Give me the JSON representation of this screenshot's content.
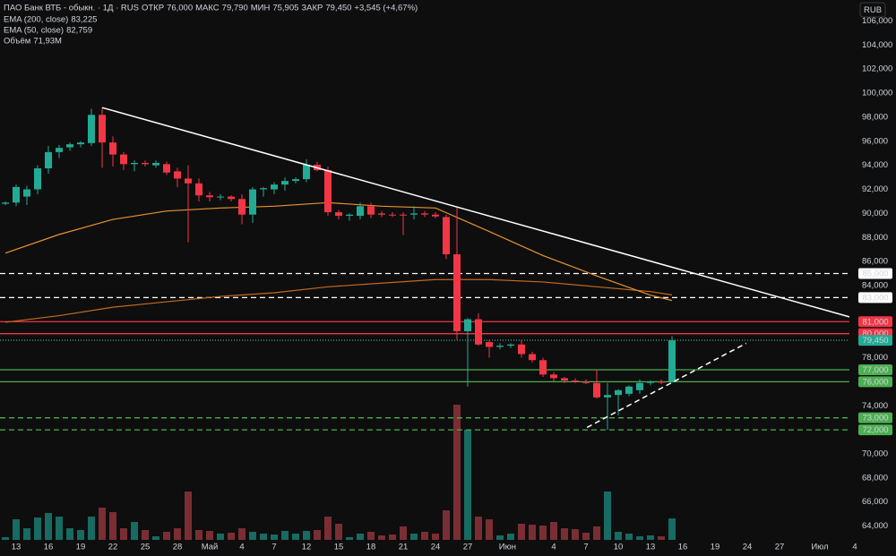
{
  "chart_data": {
    "type": "candlestick",
    "title": "ПАО Банк ВТБ - обыкн. · 1Д · RUS",
    "header": [
      [
        "ОТКР",
        "76,000"
      ],
      [
        "МАКС",
        "79,790"
      ],
      [
        "МИН",
        "75,905"
      ],
      [
        "ЗАКР",
        "79,450"
      ]
    ],
    "change": "+3,545 (+4,67%)",
    "currency": "RUB",
    "up_color": "#22ab94",
    "down_color": "#f23645",
    "candles": {
      "open": [
        90.8,
        90.9,
        91.4,
        92.0,
        93.75,
        95.1,
        95.5,
        95.75,
        95.85,
        98.2,
        95.9,
        94.9,
        94.1,
        94.2,
        94.0,
        94.1,
        93.5,
        92.9,
        92.5,
        91.5,
        91.4,
        91.4,
        91.2,
        89.9,
        92.0,
        92.0,
        92.4,
        92.7,
        92.85,
        94.05,
        93.6,
        90.1,
        89.8,
        89.8,
        90.6,
        90.0,
        89.9,
        89.9,
        89.9,
        90.0,
        89.9,
        89.7,
        86.6,
        80.2,
        81.2,
        79.3,
        78.9,
        79.0,
        79.1,
        78.3,
        77.8,
        76.6,
        76.3,
        76.1,
        76.0,
        75.9,
        74.7,
        74.9,
        75.0,
        75.3,
        75.9,
        76.0,
        76.0
      ],
      "high": [
        91.0,
        92.4,
        92.3,
        94.0,
        95.6,
        95.7,
        95.9,
        96.0,
        98.7,
        98.8,
        96.4,
        95.1,
        94.4,
        94.4,
        94.4,
        94.3,
        93.8,
        94.0,
        92.9,
        91.8,
        91.6,
        91.5,
        91.6,
        92.2,
        92.2,
        92.6,
        93.0,
        93.0,
        94.5,
        94.3,
        93.9,
        90.3,
        90.0,
        90.9,
        90.9,
        90.2,
        90.1,
        90.1,
        90.6,
        90.2,
        90.1,
        89.9,
        90.6,
        81.3,
        81.7,
        79.5,
        79.2,
        79.2,
        79.5,
        78.5,
        78.0,
        76.8,
        76.4,
        76.3,
        76.2,
        77.0,
        75.9,
        75.4,
        75.7,
        76.2,
        76.1,
        76.2,
        79.79
      ],
      "low": [
        90.7,
        90.6,
        90.7,
        91.6,
        93.3,
        94.6,
        95.2,
        95.5,
        95.6,
        93.8,
        93.9,
        93.6,
        93.5,
        93.9,
        93.8,
        93.2,
        92.2,
        87.6,
        91.0,
        91.0,
        91.1,
        91.0,
        89.1,
        89.2,
        91.4,
        91.6,
        91.9,
        92.5,
        92.6,
        93.5,
        89.8,
        89.5,
        89.4,
        89.5,
        89.6,
        89.7,
        89.7,
        88.2,
        89.5,
        89.7,
        89.6,
        86.2,
        79.5,
        75.6,
        79.0,
        78.0,
        78.7,
        78.8,
        78.0,
        77.6,
        76.4,
        76.0,
        75.9,
        75.9,
        75.8,
        74.6,
        72.0,
        73.2,
        74.8,
        75.0,
        75.7,
        75.8,
        75.905
      ],
      "close": [
        90.9,
        92.2,
        92.0,
        93.75,
        95.1,
        95.45,
        95.75,
        95.9,
        98.2,
        95.9,
        94.9,
        94.1,
        94.2,
        94.1,
        94.2,
        93.4,
        92.9,
        92.5,
        91.5,
        91.35,
        91.4,
        91.2,
        89.9,
        92.0,
        92.1,
        92.4,
        92.7,
        92.85,
        94.05,
        93.6,
        90.1,
        89.8,
        89.9,
        90.6,
        89.9,
        89.9,
        89.85,
        89.85,
        90.0,
        89.9,
        89.75,
        86.6,
        80.2,
        81.2,
        79.1,
        78.9,
        79.0,
        79.1,
        78.3,
        77.8,
        76.6,
        76.3,
        76.1,
        76.0,
        75.9,
        74.7,
        74.9,
        75.3,
        75.6,
        75.9,
        76.0,
        75.95,
        79.45
      ]
    },
    "volume": {
      "name": "Объём",
      "last_label": "71,93M",
      "vlim": [
        0,
        600
      ],
      "up_color": "#176b62",
      "down_color": "#7a2e33",
      "values": [
        9,
        69,
        39,
        75,
        90,
        78,
        39,
        33,
        78,
        108,
        93,
        39,
        60,
        33,
        12,
        27,
        39,
        162,
        33,
        30,
        21,
        24,
        39,
        27,
        21,
        18,
        30,
        21,
        30,
        33,
        78,
        54,
        9,
        21,
        27,
        15,
        18,
        45,
        21,
        27,
        21,
        99,
        453,
        369,
        78,
        69,
        15,
        21,
        54,
        51,
        48,
        60,
        39,
        36,
        24,
        45,
        162,
        27,
        21,
        12,
        15,
        12,
        71.93
      ]
    },
    "series": [
      {
        "name": "EMA (200, close)",
        "color": "#c46a1e",
        "last_label": "83,225",
        "x": [
          0,
          5,
          10,
          15,
          20,
          25,
          30,
          35,
          40,
          45,
          50,
          55,
          60,
          62
        ],
        "values": [
          80.95,
          81.5,
          82.2,
          82.65,
          83.1,
          83.4,
          83.9,
          84.2,
          84.5,
          84.5,
          84.3,
          83.9,
          83.5,
          83.225
        ]
      },
      {
        "name": "EMA (50, close)",
        "color": "#e8922f",
        "last_label": "82,759",
        "x": [
          0,
          5,
          10,
          15,
          20,
          25,
          30,
          35,
          40,
          45,
          50,
          55,
          60,
          62
        ],
        "values": [
          86.7,
          88.25,
          89.5,
          90.2,
          90.45,
          90.6,
          90.9,
          90.6,
          90.45,
          88.5,
          86.5,
          84.8,
          83.2,
          82.759
        ]
      }
    ],
    "levels": [
      {
        "value": 85,
        "label": "85,000",
        "color": "#ffffff",
        "style": "dashed"
      },
      {
        "value": 83,
        "label": "83,000",
        "color": "#ffffff",
        "style": "dashed"
      },
      {
        "value": 81,
        "label": "81,000",
        "color": "#f23645",
        "style": "solid"
      },
      {
        "value": 80,
        "label": "80,000",
        "color": "#f23645",
        "style": "solid"
      },
      {
        "value": 79.45,
        "label": "79,450",
        "color": "#22ab94",
        "style": "dotted"
      },
      {
        "value": 77,
        "label": "77,000",
        "color": "#4caf50",
        "style": "solid"
      },
      {
        "value": 76,
        "label": "76,000",
        "color": "#4caf50",
        "style": "solid"
      },
      {
        "value": 73,
        "label": "73,000",
        "color": "#4caf50",
        "style": "dashed"
      },
      {
        "value": 72,
        "label": "72,000",
        "color": "#4caf50",
        "style": "dashed"
      }
    ],
    "trendlines": [
      {
        "x": [
          9,
          78.5
        ],
        "values": [
          98.8,
          81.4
        ],
        "color": "#ffffff",
        "style": "solid"
      },
      {
        "x": [
          54.1,
          68.9
        ],
        "values": [
          72.2,
          79.2
        ],
        "color": "#ffffff",
        "style": "dashed"
      }
    ],
    "xlim": [
      -0.5,
      78.5
    ],
    "ylim": [
      62.85,
      107.75
    ],
    "yticks": [
      {
        "value": 64,
        "label": "64,000"
      },
      {
        "value": 66,
        "label": "66,000"
      },
      {
        "value": 68,
        "label": "68,000"
      },
      {
        "value": 70,
        "label": "70,000"
      },
      {
        "value": 74,
        "label": "74,000"
      },
      {
        "value": 78,
        "label": "78,000"
      },
      {
        "value": 84,
        "label": "84,000"
      },
      {
        "value": 86,
        "label": "86,000"
      },
      {
        "value": 88,
        "label": "88,000"
      },
      {
        "value": 90,
        "label": "90,000"
      },
      {
        "value": 92,
        "label": "92,000"
      },
      {
        "value": 94,
        "label": "94,000"
      },
      {
        "value": 96,
        "label": "96,000"
      },
      {
        "value": 98,
        "label": "98,000"
      },
      {
        "value": 100,
        "label": "100,000"
      },
      {
        "value": 102,
        "label": "102,000"
      },
      {
        "value": 104,
        "label": "104,000"
      },
      {
        "value": 106,
        "label": "106,000"
      }
    ],
    "xticks": [
      {
        "value": 1,
        "label": "13"
      },
      {
        "value": 4,
        "label": "16"
      },
      {
        "value": 7,
        "label": "19"
      },
      {
        "value": 10,
        "label": "22"
      },
      {
        "value": 13,
        "label": "25"
      },
      {
        "value": 16,
        "label": "28"
      },
      {
        "value": 19,
        "label": "Май"
      },
      {
        "value": 22,
        "label": "4"
      },
      {
        "value": 25,
        "label": "7"
      },
      {
        "value": 28,
        "label": "12"
      },
      {
        "value": 31,
        "label": "15"
      },
      {
        "value": 34,
        "label": "18"
      },
      {
        "value": 37,
        "label": "21"
      },
      {
        "value": 40,
        "label": "24"
      },
      {
        "value": 43,
        "label": "27"
      },
      {
        "value": 46.7,
        "label": "Июн"
      },
      {
        "value": 51,
        "label": "4"
      },
      {
        "value": 54,
        "label": "7"
      },
      {
        "value": 57,
        "label": "10"
      },
      {
        "value": 60,
        "label": "13"
      },
      {
        "value": 63,
        "label": "16"
      },
      {
        "value": 66,
        "label": "19"
      },
      {
        "value": 69,
        "label": "24"
      },
      {
        "value": 72,
        "label": "27"
      },
      {
        "value": 75.75,
        "label": "Июл"
      },
      {
        "value": 79,
        "label": "4"
      }
    ],
    "grid": false
  }
}
